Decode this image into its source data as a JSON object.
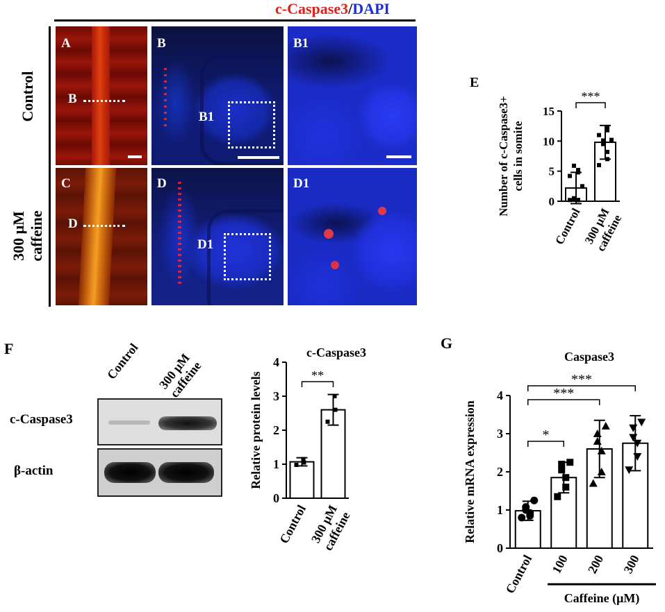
{
  "figure": {
    "title_red": "c-Caspase3",
    "title_sep": "/",
    "title_blue": "DAPI",
    "colors": {
      "caspase": "#e0201b",
      "dapi": "#1a2fe0",
      "bar_fill": "#ffffff",
      "axis": "#000000"
    }
  },
  "micrographs": {
    "row_labels": [
      "Control",
      "300 μM caffeine"
    ],
    "row_label_lines": [
      [
        "Control"
      ],
      [
        "300 μM",
        "caffeine"
      ]
    ],
    "panels": [
      {
        "label": "A",
        "line_label": "B"
      },
      {
        "label": "B",
        "box_label": "B1"
      },
      {
        "label": "B1"
      },
      {
        "label": "C",
        "line_label": "D"
      },
      {
        "label": "D",
        "box_label": "D1"
      },
      {
        "label": "D1"
      }
    ]
  },
  "panel_letters": {
    "E": "E",
    "F": "F",
    "G": "G"
  },
  "western_blot": {
    "lanes": [
      "Control",
      "300 μM caffeine"
    ],
    "lane_lines": [
      [
        "Control"
      ],
      [
        "300 μM",
        "caffeine"
      ]
    ],
    "bands": [
      "c-Caspase3",
      "β-actin"
    ]
  },
  "chart_data": [
    {
      "id": "E",
      "type": "bar",
      "title": "",
      "categories": [
        "Control",
        "300 μM caffeine"
      ],
      "category_lines": [
        [
          "Control"
        ],
        [
          "300 μM",
          "caffeine"
        ]
      ],
      "values": [
        2.2,
        9.8
      ],
      "errors": [
        2.6,
        2.8
      ],
      "points": [
        [
          0.2,
          0.2,
          0.2,
          0.3,
          0.5,
          2.5,
          4.2,
          4.8,
          5.2,
          5.9
        ],
        [
          6.0,
          7.0,
          8.2,
          9.5,
          10.1,
          10.2,
          11.0,
          11.8,
          12.2
        ]
      ],
      "ylabel_lines": [
        "Number of  c-Caspase3+",
        "cells in somite"
      ],
      "ylim": [
        0,
        15
      ],
      "yticks": [
        0,
        5,
        10,
        15
      ],
      "significance": [
        {
          "from": 0,
          "to": 1,
          "label": "***"
        }
      ]
    },
    {
      "id": "F",
      "type": "bar",
      "title": "c-Caspase3",
      "categories": [
        "Control",
        "300 μM caffeine"
      ],
      "category_lines": [
        [
          "Control"
        ],
        [
          "300 μM",
          "caffeine"
        ]
      ],
      "values": [
        1.07,
        2.6
      ],
      "errors": [
        0.12,
        0.45
      ],
      "points": [
        [
          0.98,
          1.05,
          1.15
        ],
        [
          2.25,
          2.6,
          3.0
        ]
      ],
      "ylabel_lines": [
        "Relative protein levels"
      ],
      "ylim": [
        0,
        4
      ],
      "yticks": [
        0,
        1,
        2,
        3,
        4
      ],
      "significance": [
        {
          "from": 0,
          "to": 1,
          "label": "**"
        }
      ]
    },
    {
      "id": "G",
      "type": "bar",
      "title": "Caspase3",
      "categories": [
        "Control",
        "100",
        "200",
        "300"
      ],
      "category_lines": [
        [
          "Control"
        ],
        [
          "100"
        ],
        [
          "200"
        ],
        [
          "300"
        ]
      ],
      "values": [
        0.98,
        1.85,
        2.6,
        2.75
      ],
      "errors": [
        0.25,
        0.4,
        0.75,
        0.72
      ],
      "points": [
        [
          0.8,
          0.85,
          0.92,
          1.0,
          1.08,
          1.25
        ],
        [
          1.35,
          1.6,
          1.85,
          2.05,
          2.2,
          2.25
        ],
        [
          1.7,
          2.0,
          2.55,
          2.8,
          3.0,
          3.2
        ],
        [
          2.05,
          2.4,
          2.75,
          2.9,
          3.15,
          3.3
        ]
      ],
      "markers": [
        "circle",
        "square",
        "triangle-up",
        "triangle-down"
      ],
      "ylabel_lines": [
        "Relative mRNA expression"
      ],
      "ylim": [
        0,
        4
      ],
      "yticks": [
        0,
        1,
        2,
        3,
        4
      ],
      "xgroup_label": "Caffeine (μM)",
      "significance": [
        {
          "from": 0,
          "to": 1,
          "label": "*"
        },
        {
          "from": 0,
          "to": 2,
          "label": "***"
        },
        {
          "from": 0,
          "to": 3,
          "label": "***"
        }
      ]
    }
  ]
}
